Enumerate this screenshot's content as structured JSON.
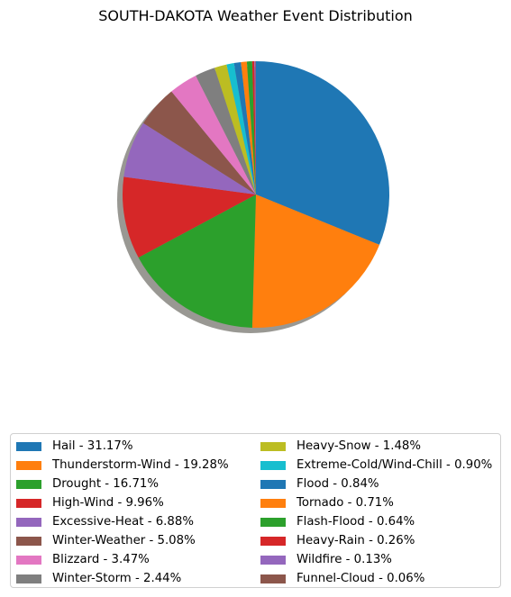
{
  "chart_data": {
    "type": "pie",
    "title": "SOUTH-DAKOTA Weather Event Distribution",
    "shadow": true,
    "start_angle_deg": 90,
    "direction": "clockwise",
    "legend_placement": "bottom",
    "legend_columns": 2,
    "slices": [
      {
        "label": "Hail",
        "value": 31.17,
        "legend": "Hail - 31.17%",
        "color": "#1f77b4"
      },
      {
        "label": "Thunderstorm-Wind",
        "value": 19.28,
        "legend": "Thunderstorm-Wind - 19.28%",
        "color": "#ff7f0e"
      },
      {
        "label": "Drought",
        "value": 16.71,
        "legend": "Drought - 16.71%",
        "color": "#2ca02c"
      },
      {
        "label": "High-Wind",
        "value": 9.96,
        "legend": "High-Wind - 9.96%",
        "color": "#d62728"
      },
      {
        "label": "Excessive-Heat",
        "value": 6.88,
        "legend": "Excessive-Heat - 6.88%",
        "color": "#9467bd"
      },
      {
        "label": "Winter-Weather",
        "value": 5.08,
        "legend": "Winter-Weather - 5.08%",
        "color": "#8c564b"
      },
      {
        "label": "Blizzard",
        "value": 3.47,
        "legend": "Blizzard - 3.47%",
        "color": "#e377c2"
      },
      {
        "label": "Winter-Storm",
        "value": 2.44,
        "legend": "Winter-Storm - 2.44%",
        "color": "#7f7f7f"
      },
      {
        "label": "Heavy-Snow",
        "value": 1.48,
        "legend": "Heavy-Snow - 1.48%",
        "color": "#bcbd22"
      },
      {
        "label": "Extreme-Cold/Wind-Chill",
        "value": 0.9,
        "legend": "Extreme-Cold/Wind-Chill - 0.90%",
        "color": "#17becf"
      },
      {
        "label": "Flood",
        "value": 0.84,
        "legend": "Flood - 0.84%",
        "color": "#1f77b4"
      },
      {
        "label": "Tornado",
        "value": 0.71,
        "legend": "Tornado - 0.71%",
        "color": "#ff7f0e"
      },
      {
        "label": "Flash-Flood",
        "value": 0.64,
        "legend": "Flash-Flood - 0.64%",
        "color": "#2ca02c"
      },
      {
        "label": "Heavy-Rain",
        "value": 0.26,
        "legend": "Heavy-Rain - 0.26%",
        "color": "#d62728"
      },
      {
        "label": "Wildfire",
        "value": 0.13,
        "legend": "Wildfire - 0.13%",
        "color": "#9467bd"
      },
      {
        "label": "Funnel-Cloud",
        "value": 0.06,
        "legend": "Funnel-Cloud - 0.06%",
        "color": "#8c564b"
      }
    ]
  }
}
